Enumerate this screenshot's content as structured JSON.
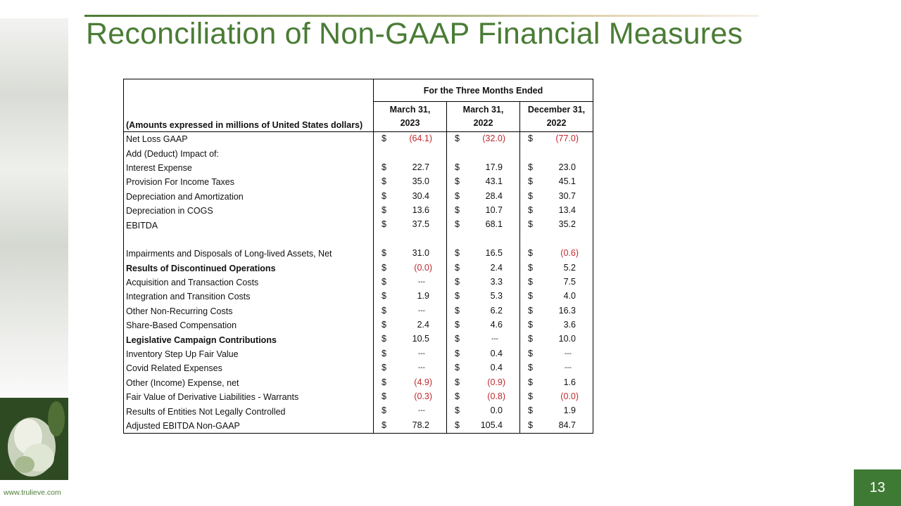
{
  "header": {
    "title": "Reconciliation of Non-GAAP Financial Measures"
  },
  "table": {
    "period_heading": "For the Three Months Ended",
    "units_heading": "(Amounts expressed in millions of United States dollars)",
    "currency": "$",
    "columns": [
      {
        "line1": "March 31,",
        "line2": "2023"
      },
      {
        "line1": "March 31,",
        "line2": "2022"
      },
      {
        "line1": "December 31,",
        "line2": "2022"
      }
    ],
    "sections": [
      [
        {
          "label": "Net Loss GAAP",
          "cells": [
            "(64.1)",
            "(32.0)",
            "(77.0)"
          ]
        },
        {
          "label": "Add (Deduct) Impact of:"
        },
        {
          "label": "Interest Expense",
          "cells": [
            "22.7",
            "17.9",
            "23.0"
          ]
        },
        {
          "label": "Provision For Income Taxes",
          "cells": [
            "35.0",
            "43.1",
            "45.1"
          ]
        },
        {
          "label": "Depreciation and Amortization",
          "cells": [
            "30.4",
            "28.4",
            "30.7"
          ]
        },
        {
          "label": "Depreciation in COGS",
          "cells": [
            "13.6",
            "10.7",
            "13.4"
          ]
        },
        {
          "label": "EBITDA",
          "cells": [
            "37.5",
            "68.1",
            "35.2"
          ]
        }
      ],
      [
        {
          "label": "Impairments and Disposals of Long-lived Assets, Net",
          "cells": [
            "31.0",
            "16.5",
            "(0.6)"
          ]
        },
        {
          "label": "Results of Discontinued Operations",
          "bold": true,
          "cells": [
            "(0.0)",
            "2.4",
            "5.2"
          ]
        },
        {
          "label": "Acquisition and Transaction Costs",
          "cells": [
            "---",
            "3.3",
            "7.5"
          ]
        },
        {
          "label": "Integration and Transition Costs",
          "cells": [
            "1.9",
            "5.3",
            "4.0"
          ]
        },
        {
          "label": "Other Non-Recurring Costs",
          "cells": [
            "---",
            "6.2",
            "16.3"
          ]
        },
        {
          "label": "Share-Based Compensation",
          "cells": [
            "2.4",
            "4.6",
            "3.6"
          ]
        },
        {
          "label": "Legislative Campaign Contributions",
          "bold": true,
          "cells": [
            "10.5",
            "---",
            "10.0"
          ]
        },
        {
          "label": "Inventory Step Up Fair Value",
          "cells": [
            "---",
            "0.4",
            "---"
          ]
        },
        {
          "label": "Covid Related Expenses",
          "cells": [
            "---",
            "0.4",
            "---"
          ]
        },
        {
          "label": "Other (Income) Expense, net",
          "cells": [
            "(4.9)",
            "(0.9)",
            "1.6"
          ]
        },
        {
          "label": "Fair Value of Derivative Liabilities - Warrants",
          "cells": [
            "(0.3)",
            "(0.8)",
            "(0.0)"
          ]
        },
        {
          "label": "Results of Entities Not Legally Controlled",
          "cells": [
            "---",
            "0.0",
            "1.9"
          ]
        },
        {
          "label": "Adjusted EBITDA Non-GAAP",
          "cells": [
            "78.2",
            "105.4",
            "84.7"
          ]
        }
      ]
    ]
  },
  "footer": {
    "website": "www.trulieve.com",
    "page_number": "13"
  }
}
